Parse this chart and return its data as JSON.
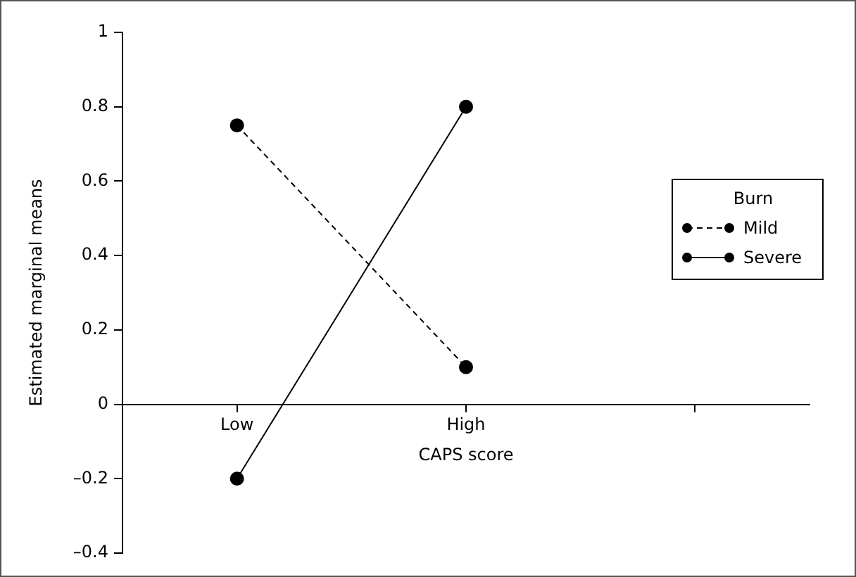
{
  "chart_data": {
    "type": "line",
    "xlabel": "CAPS score",
    "ylabel": "Estimated marginal means",
    "legend_title": "Burn",
    "categories": [
      "Low",
      "High",
      null
    ],
    "series": [
      {
        "name": "Mild",
        "color": "#000000",
        "values": [
          0.75,
          0.1,
          null
        ],
        "line_style": "dashed"
      },
      {
        "name": "Severe",
        "color": "#000000",
        "values": [
          -0.2,
          0.8,
          null
        ],
        "line_style": "solid"
      }
    ],
    "ylim": [
      -0.4,
      1
    ],
    "yticks": [
      {
        "value": -0.4,
        "label": "–0.4"
      },
      {
        "value": -0.2,
        "label": "–0.2"
      },
      0,
      0.2,
      0.4,
      0.6,
      0.8,
      1
    ],
    "grid": false,
    "legend": "right",
    "marker": "circle"
  }
}
